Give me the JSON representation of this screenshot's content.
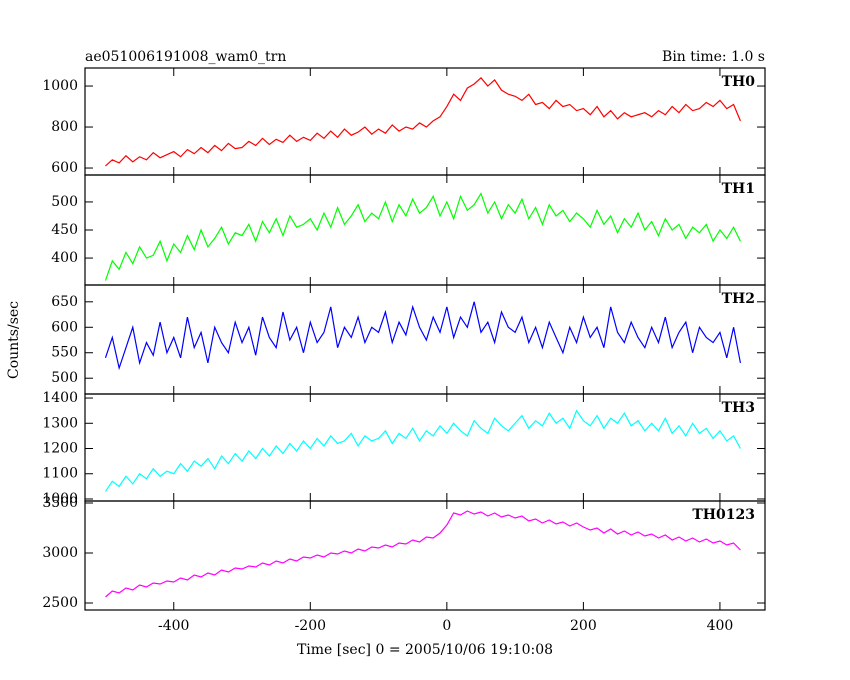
{
  "chart_data": {
    "type": "line",
    "title": "ae051006191008_wam0_trn",
    "subtitle": "Bin time: 1.0 s",
    "xlabel": "Time [sec] 0 = 2005/10/06 19:10:08",
    "ylabel": "Counts/sec",
    "xlim": [
      -530,
      466
    ],
    "xticks": [
      -400,
      -200,
      0,
      200,
      400
    ],
    "x": [
      -500,
      -490,
      -480,
      -470,
      -460,
      -450,
      -440,
      -430,
      -420,
      -410,
      -400,
      -390,
      -380,
      -370,
      -360,
      -350,
      -340,
      -330,
      -320,
      -310,
      -300,
      -290,
      -280,
      -270,
      -260,
      -250,
      -240,
      -230,
      -220,
      -210,
      -200,
      -190,
      -180,
      -170,
      -160,
      -150,
      -140,
      -130,
      -120,
      -110,
      -100,
      -90,
      -80,
      -70,
      -60,
      -50,
      -40,
      -30,
      -20,
      -10,
      0,
      10,
      20,
      30,
      40,
      50,
      60,
      70,
      80,
      90,
      100,
      110,
      120,
      130,
      140,
      150,
      160,
      170,
      180,
      190,
      200,
      210,
      220,
      230,
      240,
      250,
      260,
      270,
      280,
      290,
      300,
      310,
      320,
      330,
      340,
      350,
      360,
      370,
      380,
      390,
      400,
      410,
      420,
      430
    ],
    "series": [
      {
        "name": "TH0",
        "color": "#ff0000",
        "ylim": [
          566,
          1088
        ],
        "yticks": [
          600,
          800,
          1000
        ],
        "values": [
          610,
          640,
          625,
          660,
          630,
          655,
          640,
          675,
          650,
          665,
          680,
          655,
          690,
          670,
          700,
          675,
          710,
          685,
          720,
          695,
          700,
          730,
          710,
          745,
          715,
          740,
          725,
          760,
          730,
          750,
          735,
          770,
          745,
          780,
          750,
          790,
          760,
          775,
          800,
          765,
          790,
          770,
          810,
          780,
          800,
          790,
          820,
          800,
          830,
          850,
          900,
          960,
          930,
          990,
          1010,
          1040,
          1000,
          1030,
          980,
          960,
          950,
          930,
          960,
          910,
          920,
          890,
          930,
          900,
          910,
          880,
          890,
          860,
          900,
          850,
          880,
          840,
          870,
          850,
          860,
          870,
          850,
          880,
          860,
          900,
          870,
          910,
          880,
          890,
          920,
          900,
          930,
          890,
          910,
          830
        ]
      },
      {
        "name": "TH1",
        "color": "#00ff00",
        "ylim": [
          352,
          548
        ],
        "yticks": [
          400,
          450,
          500
        ],
        "values": [
          360,
          395,
          380,
          410,
          390,
          420,
          400,
          405,
          430,
          395,
          425,
          410,
          440,
          415,
          450,
          420,
          435,
          455,
          425,
          445,
          440,
          460,
          430,
          465,
          445,
          470,
          440,
          475,
          455,
          460,
          470,
          450,
          480,
          455,
          490,
          460,
          475,
          495,
          465,
          480,
          470,
          500,
          465,
          495,
          475,
          505,
          480,
          490,
          510,
          475,
          500,
          470,
          510,
          485,
          495,
          515,
          480,
          500,
          470,
          495,
          480,
          505,
          470,
          490,
          460,
          495,
          475,
          485,
          465,
          480,
          470,
          455,
          485,
          460,
          475,
          445,
          470,
          455,
          480,
          450,
          465,
          440,
          470,
          450,
          460,
          435,
          455,
          445,
          460,
          430,
          450,
          435,
          455,
          430
        ]
      },
      {
        "name": "TH2",
        "color": "#0000ff",
        "ylim": [
          469,
          683
        ],
        "yticks": [
          500,
          550,
          600,
          650
        ],
        "values": [
          540,
          580,
          520,
          560,
          600,
          530,
          570,
          545,
          610,
          550,
          580,
          540,
          620,
          560,
          590,
          530,
          600,
          570,
          550,
          610,
          570,
          600,
          545,
          620,
          580,
          560,
          630,
          575,
          600,
          550,
          610,
          570,
          590,
          640,
          560,
          600,
          580,
          620,
          570,
          600,
          590,
          630,
          570,
          610,
          585,
          640,
          600,
          575,
          620,
          590,
          640,
          580,
          620,
          600,
          650,
          590,
          610,
          570,
          630,
          600,
          590,
          620,
          570,
          600,
          560,
          610,
          580,
          550,
          600,
          570,
          620,
          580,
          600,
          560,
          640,
          590,
          570,
          610,
          580,
          560,
          600,
          570,
          620,
          560,
          590,
          610,
          550,
          600,
          580,
          570,
          590,
          540,
          600,
          530
        ]
      },
      {
        "name": "TH3",
        "color": "#00ffff",
        "ylim": [
          992,
          1416
        ],
        "yticks": [
          1000,
          1100,
          1200,
          1300,
          1400
        ],
        "values": [
          1030,
          1070,
          1050,
          1090,
          1060,
          1100,
          1080,
          1120,
          1090,
          1110,
          1100,
          1140,
          1110,
          1150,
          1130,
          1160,
          1120,
          1170,
          1140,
          1180,
          1150,
          1190,
          1160,
          1200,
          1170,
          1210,
          1180,
          1220,
          1190,
          1230,
          1200,
          1240,
          1210,
          1250,
          1220,
          1230,
          1260,
          1210,
          1250,
          1230,
          1240,
          1270,
          1220,
          1260,
          1240,
          1280,
          1230,
          1270,
          1250,
          1290,
          1260,
          1300,
          1270,
          1250,
          1310,
          1280,
          1260,
          1320,
          1290,
          1270,
          1300,
          1330,
          1280,
          1310,
          1290,
          1340,
          1300,
          1320,
          1280,
          1350,
          1310,
          1290,
          1330,
          1280,
          1320,
          1300,
          1340,
          1290,
          1310,
          1270,
          1300,
          1270,
          1320,
          1260,
          1290,
          1250,
          1300,
          1260,
          1280,
          1240,
          1270,
          1230,
          1250,
          1200
        ]
      },
      {
        "name": "TH0123",
        "color": "#ff00ff",
        "ylim": [
          2430,
          3520
        ],
        "yticks": [
          2500,
          3000,
          3500
        ],
        "values": [
          2560,
          2620,
          2600,
          2650,
          2630,
          2680,
          2660,
          2700,
          2690,
          2720,
          2710,
          2750,
          2730,
          2780,
          2760,
          2800,
          2780,
          2830,
          2810,
          2850,
          2840,
          2870,
          2860,
          2900,
          2880,
          2920,
          2900,
          2940,
          2920,
          2960,
          2950,
          2980,
          2960,
          3000,
          2990,
          3020,
          3000,
          3040,
          3020,
          3060,
          3050,
          3080,
          3060,
          3100,
          3090,
          3130,
          3110,
          3160,
          3150,
          3200,
          3280,
          3400,
          3380,
          3420,
          3390,
          3410,
          3370,
          3400,
          3360,
          3380,
          3350,
          3370,
          3320,
          3340,
          3300,
          3330,
          3290,
          3310,
          3270,
          3300,
          3260,
          3230,
          3250,
          3200,
          3240,
          3190,
          3220,
          3180,
          3210,
          3170,
          3190,
          3150,
          3180,
          3130,
          3160,
          3120,
          3150,
          3110,
          3140,
          3100,
          3120,
          3080,
          3100,
          3030
        ]
      }
    ]
  }
}
